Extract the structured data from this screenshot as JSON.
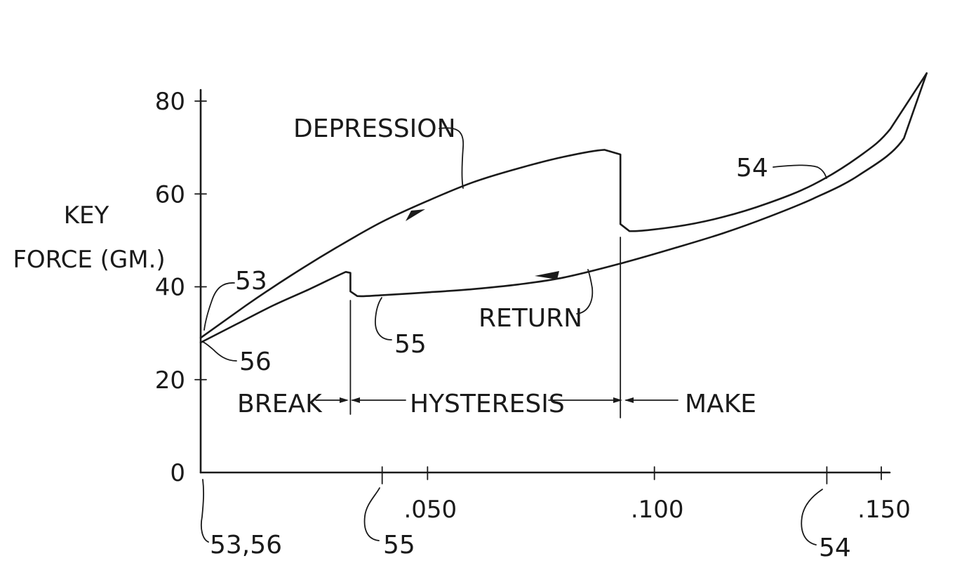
{
  "chart_data": {
    "type": "line",
    "title": "",
    "ylabel_lines": [
      "KEY",
      "FORCE (GM.)"
    ],
    "xlabel": "",
    "ylim": [
      0,
      80
    ],
    "xlim": [
      0,
      0.15
    ],
    "y_ticks": [
      {
        "value": 0,
        "label": "0"
      },
      {
        "value": 20,
        "label": "20"
      },
      {
        "value": 40,
        "label": "40"
      },
      {
        "value": 60,
        "label": "60"
      },
      {
        "value": 80,
        "label": "80"
      }
    ],
    "x_ticks": [
      {
        "value": 0.05,
        "label": ".050"
      },
      {
        "value": 0.1,
        "label": ".100"
      },
      {
        "value": 0.15,
        "label": ".150"
      }
    ],
    "x_minor_ticks": [
      0.04,
      0.138
    ],
    "series": [
      {
        "name": "DEPRESSION",
        "points": [
          [
            0.0,
            29.0
          ],
          [
            0.01,
            36.0
          ],
          [
            0.02,
            42.5
          ],
          [
            0.03,
            48.5
          ],
          [
            0.04,
            54.0
          ],
          [
            0.05,
            58.5
          ],
          [
            0.06,
            62.5
          ],
          [
            0.07,
            65.5
          ],
          [
            0.08,
            68.0
          ],
          [
            0.089,
            69.5
          ],
          [
            0.0925,
            68.5
          ],
          [
            0.0925,
            53.5
          ],
          [
            0.0945,
            52.0
          ],
          [
            0.105,
            53.0
          ],
          [
            0.115,
            55.0
          ],
          [
            0.125,
            58.0
          ],
          [
            0.135,
            62.0
          ],
          [
            0.145,
            68.0
          ],
          [
            0.152,
            74.0
          ],
          [
            0.16,
            86.0
          ]
        ]
      },
      {
        "name": "RETURN",
        "points": [
          [
            0.16,
            86.0
          ],
          [
            0.155,
            72.0
          ],
          [
            0.145,
            64.0
          ],
          [
            0.135,
            59.0
          ],
          [
            0.125,
            55.0
          ],
          [
            0.115,
            51.5
          ],
          [
            0.105,
            48.5
          ],
          [
            0.0925,
            45.0
          ],
          [
            0.08,
            42.0
          ],
          [
            0.07,
            40.5
          ],
          [
            0.06,
            39.5
          ],
          [
            0.05,
            38.8
          ],
          [
            0.04,
            38.2
          ],
          [
            0.0345,
            38.0
          ],
          [
            0.033,
            39.0
          ],
          [
            0.033,
            43.0
          ],
          [
            0.032,
            43.2
          ],
          [
            0.024,
            39.5
          ],
          [
            0.016,
            36.0
          ],
          [
            0.008,
            32.0
          ],
          [
            0.0,
            28.0
          ]
        ]
      }
    ],
    "break_x": 0.033,
    "make_x": 0.0925,
    "annotations": {
      "depression": "DEPRESSION",
      "return": "RETURN",
      "break": "BREAK",
      "hysteresis": "HYSTERESIS",
      "make": "MAKE"
    },
    "refs": {
      "r53": "53",
      "r56": "56",
      "r55": "55",
      "r54": "54",
      "r5356_x": "53,56",
      "r55_x": "55",
      "r54_x": "54"
    }
  }
}
